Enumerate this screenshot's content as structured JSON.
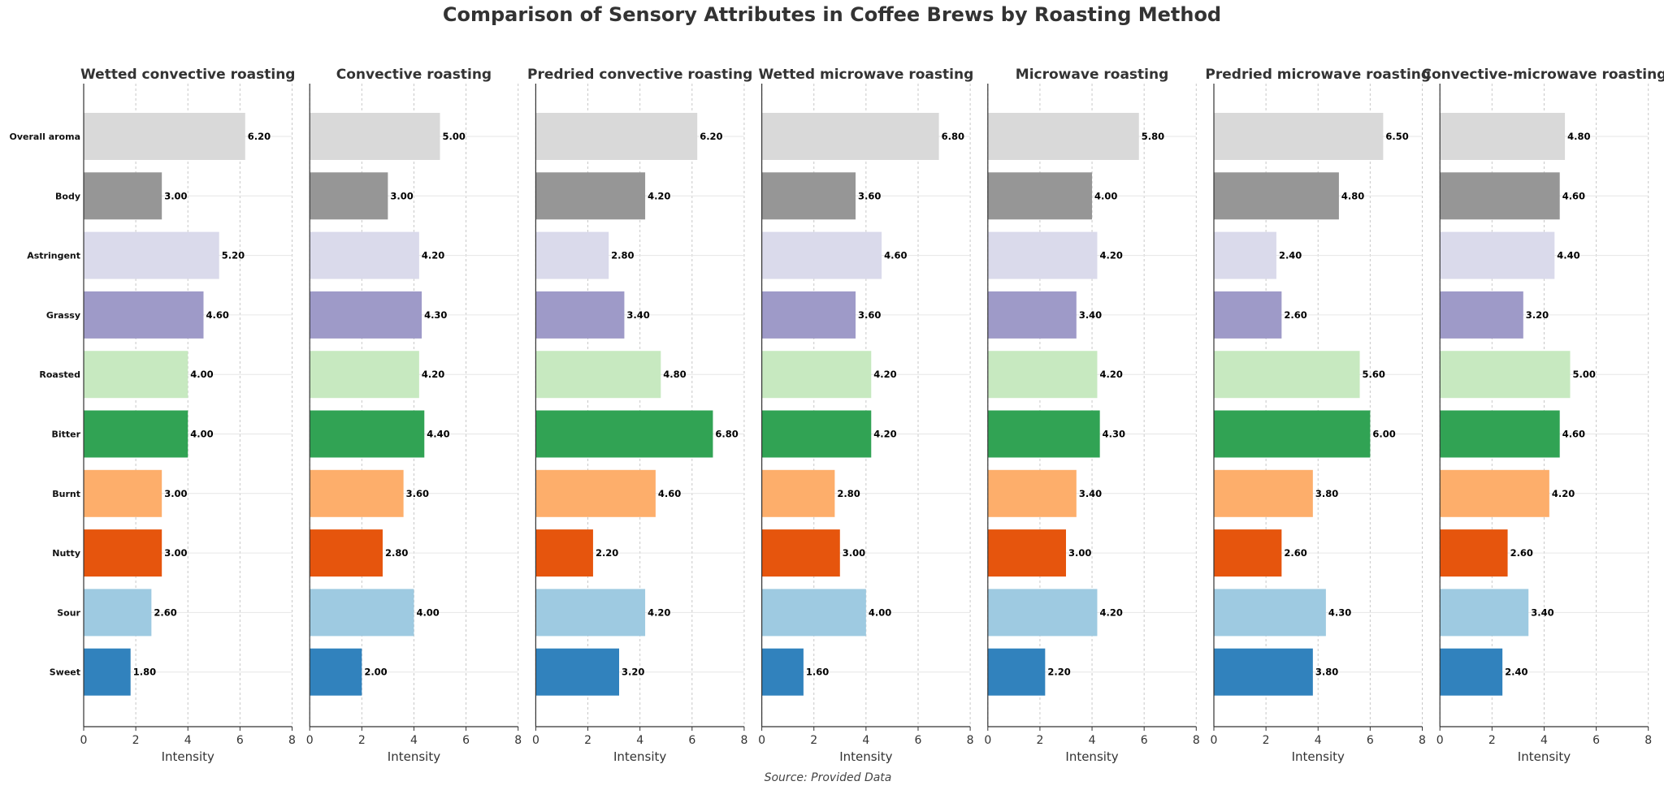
{
  "chart_data": {
    "type": "bar",
    "orientation": "horizontal",
    "title": "Comparison of Sensory Attributes in Coffee Brews by Roasting Method",
    "footer": "Source: Provided Data",
    "xlabel": "Intensity",
    "xlim": [
      0,
      8
    ],
    "xticks": [
      0,
      2,
      4,
      6,
      8
    ],
    "grid": true,
    "categories": [
      "Overall aroma",
      "Body",
      "Astringent",
      "Grassy",
      "Roasted",
      "Bitter",
      "Burnt",
      "Nutty",
      "Sour",
      "Sweet"
    ],
    "bar_colors": [
      "#d9d9d9",
      "#969696",
      "#dadaeb",
      "#9e9ac8",
      "#c7e9c0",
      "#31a354",
      "#fdae6b",
      "#e6550d",
      "#9ecae1",
      "#3182bd"
    ],
    "panels": [
      {
        "title": "Wetted convective roasting",
        "values": [
          6.2,
          3.0,
          5.2,
          4.6,
          4.0,
          4.0,
          3.0,
          3.0,
          2.6,
          1.8
        ]
      },
      {
        "title": "Convective roasting",
        "values": [
          5.0,
          3.0,
          4.2,
          4.3,
          4.2,
          4.4,
          3.6,
          2.8,
          4.0,
          2.0
        ]
      },
      {
        "title": "Predried convective roasting",
        "values": [
          6.2,
          4.2,
          2.8,
          3.4,
          4.8,
          6.8,
          4.6,
          2.2,
          4.2,
          3.2
        ]
      },
      {
        "title": "Wetted microwave roasting",
        "values": [
          6.8,
          3.6,
          4.6,
          3.6,
          4.2,
          4.2,
          2.8,
          3.0,
          4.0,
          1.6
        ]
      },
      {
        "title": "Microwave roasting",
        "values": [
          5.8,
          4.0,
          4.2,
          3.4,
          4.2,
          4.3,
          3.4,
          3.0,
          4.2,
          2.2
        ]
      },
      {
        "title": "Predried microwave roasting",
        "values": [
          6.5,
          4.8,
          2.4,
          2.6,
          5.6,
          6.0,
          3.8,
          2.6,
          4.3,
          3.8
        ]
      },
      {
        "title": "Convective-microwave roasting",
        "values": [
          4.8,
          4.6,
          4.4,
          3.2,
          5.0,
          4.6,
          4.2,
          2.6,
          3.4,
          2.4
        ]
      }
    ]
  }
}
